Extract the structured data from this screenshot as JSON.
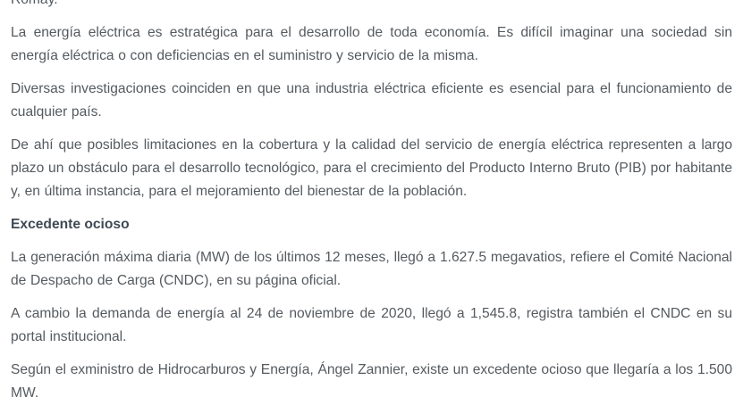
{
  "page": {
    "background_color": "#ffffff",
    "body_text_color": "#555a5f",
    "heading_text_color": "#3f4a54"
  },
  "article": {
    "blocks": [
      {
        "type": "paragraph",
        "text": "Romay."
      },
      {
        "type": "paragraph",
        "text": "La energía eléctrica es estratégica para el desarrollo de toda economía. Es difícil imaginar una sociedad sin energía eléctrica o con deficiencias en el suministro y servicio de la misma."
      },
      {
        "type": "paragraph",
        "text": "Diversas investigaciones coinciden en que una industria eléctrica eficiente es esencial para el funcionamiento de cualquier país."
      },
      {
        "type": "paragraph",
        "text": "De ahí que posibles limitaciones en la cobertura y la calidad del servicio de energía eléctrica representen a largo plazo un obstáculo para el desarrollo tecnológico, para el crecimiento del Producto Interno Bruto (PIB) por habitante y, en última instancia, para el mejoramiento del bienestar de la población."
      },
      {
        "type": "heading",
        "text": "Excedente ocioso"
      },
      {
        "type": "paragraph",
        "text": "La generación máxima diaria (MW) de los últimos 12 meses, llegó a 1.627.5 megavatios, refiere el Comité Nacional de Despacho de Carga (CNDC), en su página oficial."
      },
      {
        "type": "paragraph",
        "text": "A cambio la demanda de energía al 24 de noviembre de 2020, llegó a 1,545.8, registra también el CNDC en su portal institucional."
      },
      {
        "type": "paragraph",
        "text": "Según el exministro de Hidrocarburos y Energía, Ángel Zannier, existe un excedente ocioso que llegaría a los 1.500 MW."
      }
    ]
  }
}
